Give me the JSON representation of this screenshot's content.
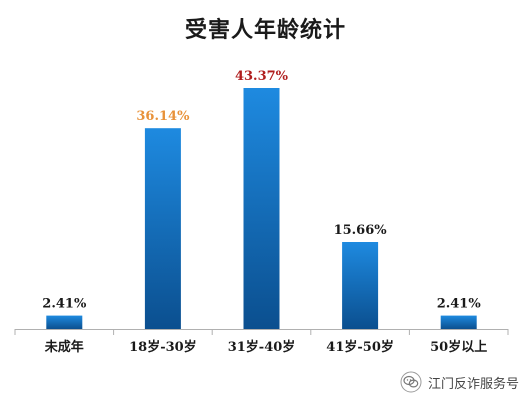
{
  "chart_data": {
    "type": "bar",
    "title": "受害人年龄统计",
    "categories": [
      "未成年",
      "18岁-30岁",
      "31岁-40岁",
      "41岁-50岁",
      "50岁以上"
    ],
    "values": [
      2.41,
      36.14,
      43.37,
      15.66,
      2.41
    ],
    "value_labels": [
      "2.41%",
      "36.14%",
      "43.37%",
      "15.66%",
      "2.41%"
    ],
    "label_colors": [
      "#1a1a1a",
      "#e8923a",
      "#b01e1e",
      "#1a1a1a",
      "#1a1a1a"
    ],
    "bar_color_top": "#1e8ae0",
    "bar_color_bottom": "#0b4f8f",
    "ylim": [
      0,
      45
    ],
    "grid": false,
    "legend": "none",
    "xlabel": "",
    "ylabel": ""
  },
  "watermark": {
    "icon": "wechat-icon",
    "text": "江门反诈服务号"
  }
}
